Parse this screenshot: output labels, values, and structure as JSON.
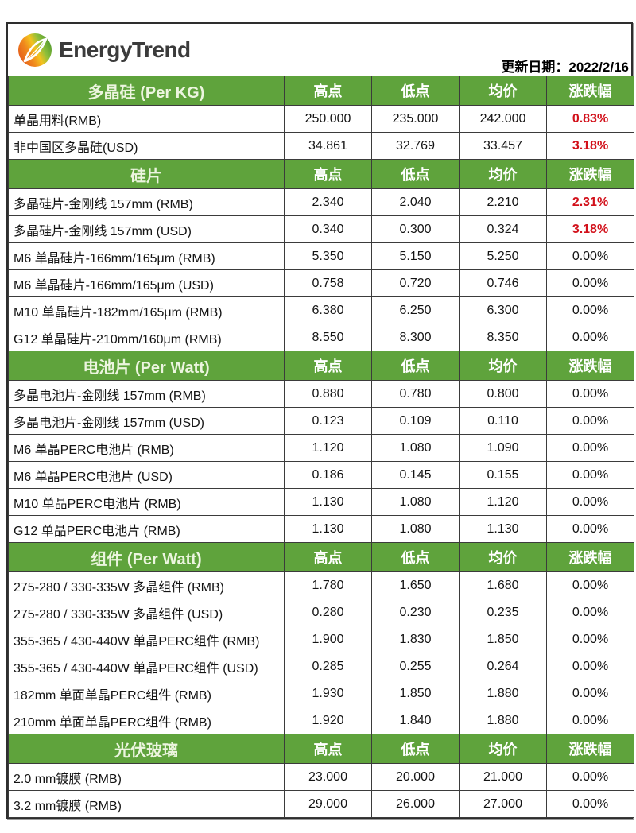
{
  "header": {
    "brand": "EnergyTrend",
    "update_date": "更新日期：2022/2/16"
  },
  "colors": {
    "header_green": "#5FA33C",
    "change_up_red": "#D2111B",
    "border_dark": "#3B3B3B"
  },
  "chart_data": {
    "type": "table",
    "columns": [
      "高点",
      "低点",
      "均价",
      "涨跌幅"
    ],
    "sections": [
      {
        "title": "多晶硅 (Per KG)",
        "rows": [
          {
            "label": "单晶用料(RMB)",
            "high": "250.000",
            "low": "235.000",
            "avg": "242.000",
            "change": "0.83%",
            "up": true
          },
          {
            "label": "非中国区多晶硅(USD)",
            "high": "34.861",
            "low": "32.769",
            "avg": "33.457",
            "change": "3.18%",
            "up": true
          }
        ]
      },
      {
        "title": "硅片",
        "rows": [
          {
            "label": "多晶硅片-金刚线 157mm (RMB)",
            "high": "2.340",
            "low": "2.040",
            "avg": "2.210",
            "change": "2.31%",
            "up": true
          },
          {
            "label": "多晶硅片-金刚线 157mm (USD)",
            "high": "0.340",
            "low": "0.300",
            "avg": "0.324",
            "change": "3.18%",
            "up": true
          },
          {
            "label": "M6 单晶硅片-166mm/165μm (RMB)",
            "high": "5.350",
            "low": "5.150",
            "avg": "5.250",
            "change": "0.00%",
            "up": false
          },
          {
            "label": "M6 单晶硅片-166mm/165μm (USD)",
            "high": "0.758",
            "low": "0.720",
            "avg": "0.746",
            "change": "0.00%",
            "up": false
          },
          {
            "label": "M10 单晶硅片-182mm/165μm (RMB)",
            "high": "6.380",
            "low": "6.250",
            "avg": "6.300",
            "change": "0.00%",
            "up": false
          },
          {
            "label": "G12 单晶硅片-210mm/160μm  (RMB)",
            "high": "8.550",
            "low": "8.300",
            "avg": "8.350",
            "change": "0.00%",
            "up": false
          }
        ]
      },
      {
        "title": "电池片 (Per Watt)",
        "rows": [
          {
            "label": "多晶电池片-金刚线 157mm (RMB)",
            "high": "0.880",
            "low": "0.780",
            "avg": "0.800",
            "change": "0.00%",
            "up": false
          },
          {
            "label": "多晶电池片-金刚线 157mm (USD)",
            "high": "0.123",
            "low": "0.109",
            "avg": "0.110",
            "change": "0.00%",
            "up": false
          },
          {
            "label": "M6 单晶PERC电池片 (RMB)",
            "high": "1.120",
            "low": "1.080",
            "avg": "1.090",
            "change": "0.00%",
            "up": false
          },
          {
            "label": "M6 单晶PERC电池片 (USD)",
            "high": "0.186",
            "low": "0.145",
            "avg": "0.155",
            "change": "0.00%",
            "up": false
          },
          {
            "label": "M10 单晶PERC电池片 (RMB)",
            "high": "1.130",
            "low": "1.080",
            "avg": "1.120",
            "change": "0.00%",
            "up": false
          },
          {
            "label": "G12 单晶PERC电池片 (RMB)",
            "high": "1.130",
            "low": "1.080",
            "avg": "1.130",
            "change": "0.00%",
            "up": false
          }
        ]
      },
      {
        "title": "组件 (Per Watt)",
        "rows": [
          {
            "label": "275-280 / 330-335W 多晶组件 (RMB)",
            "high": "1.780",
            "low": "1.650",
            "avg": "1.680",
            "change": "0.00%",
            "up": false
          },
          {
            "label": "275-280 / 330-335W 多晶组件 (USD)",
            "high": "0.280",
            "low": "0.230",
            "avg": "0.235",
            "change": "0.00%",
            "up": false
          },
          {
            "label": "355-365 / 430-440W 单晶PERC组件 (RMB)",
            "high": "1.900",
            "low": "1.830",
            "avg": "1.850",
            "change": "0.00%",
            "up": false
          },
          {
            "label": "355-365 / 430-440W 单晶PERC组件 (USD)",
            "high": "0.285",
            "low": "0.255",
            "avg": "0.264",
            "change": "0.00%",
            "up": false
          },
          {
            "label": "182mm 单面单晶PERC组件 (RMB)",
            "high": "1.930",
            "low": "1.850",
            "avg": "1.880",
            "change": "0.00%",
            "up": false
          },
          {
            "label": "210mm 单面单晶PERC组件 (RMB)",
            "high": "1.920",
            "low": "1.840",
            "avg": "1.880",
            "change": "0.00%",
            "up": false
          }
        ]
      },
      {
        "title": "光伏玻璃",
        "rows": [
          {
            "label": "2.0 mm镀膜 (RMB)",
            "high": "23.000",
            "low": "20.000",
            "avg": "21.000",
            "change": "0.00%",
            "up": false
          },
          {
            "label": "3.2 mm镀膜 (RMB)",
            "high": "29.000",
            "low": "26.000",
            "avg": "27.000",
            "change": "0.00%",
            "up": false
          }
        ]
      }
    ]
  }
}
